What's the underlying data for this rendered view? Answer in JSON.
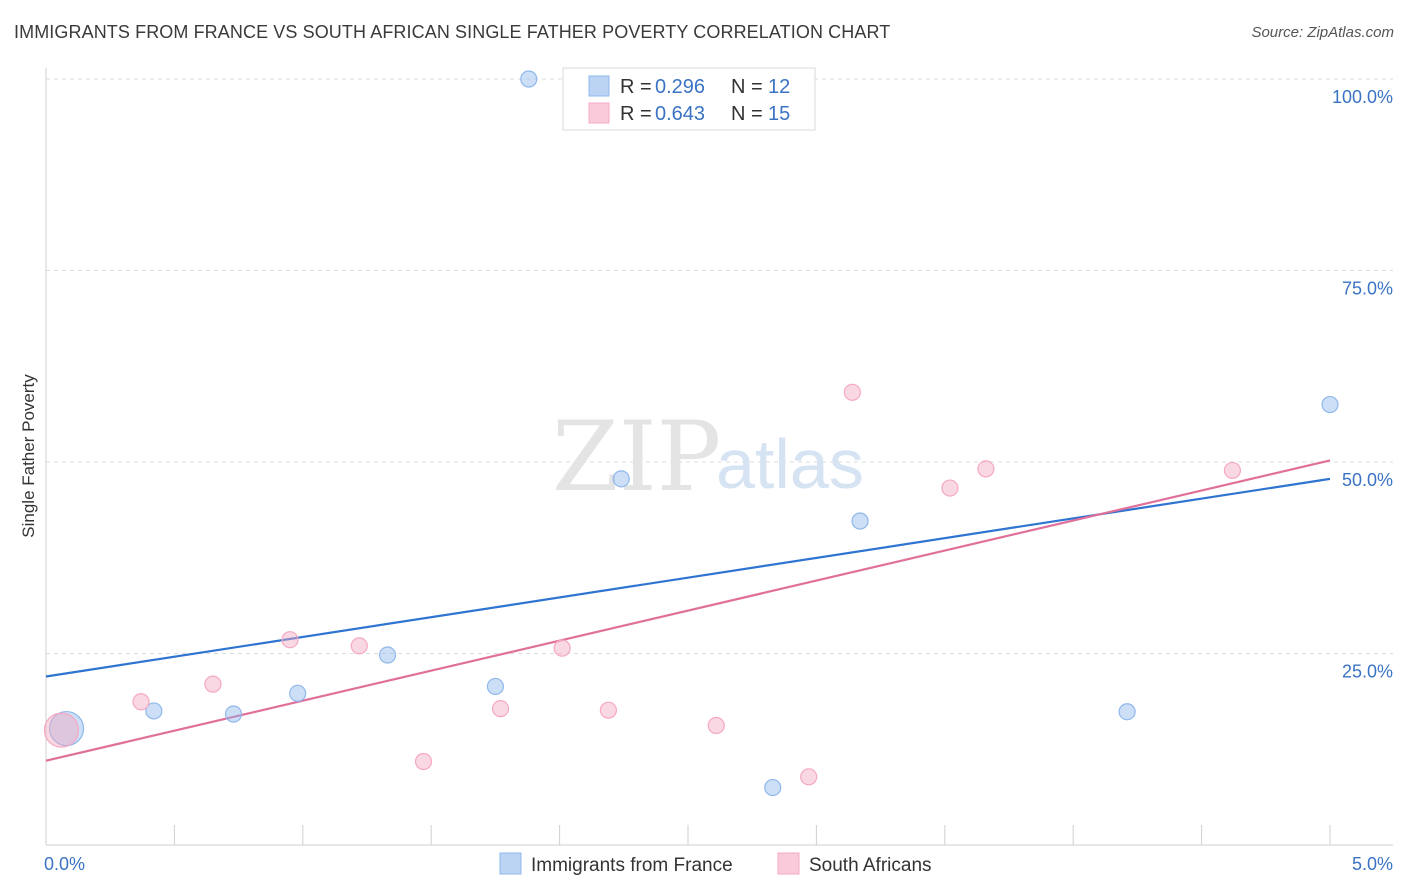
{
  "title": "IMMIGRANTS FROM FRANCE VS SOUTH AFRICAN SINGLE FATHER POVERTY CORRELATION CHART",
  "source": "Source: ZipAtlas.com",
  "watermark": {
    "zip": "ZIP",
    "atlas": "atlas"
  },
  "chart_data": {
    "type": "scatter",
    "ylabel": "Single Father Poverty",
    "xlim": [
      0,
      5
    ],
    "ylim": [
      0,
      100
    ],
    "x_tick_labels": [
      {
        "value": 0,
        "label": "0.0%"
      },
      {
        "value": 5,
        "label": "5.0%"
      }
    ],
    "y_tick_labels": [
      {
        "value": 25,
        "label": "25.0%"
      },
      {
        "value": 50,
        "label": "50.0%"
      },
      {
        "value": 75,
        "label": "75.0%"
      },
      {
        "value": 100,
        "label": "100.0%"
      }
    ],
    "grid": true,
    "legend_top": [
      {
        "r_label": "R = ",
        "r_value": "0.296",
        "n_label": "N = ",
        "n_value": "12",
        "color": "#8fb8ec"
      },
      {
        "r_label": "R = ",
        "r_value": "0.643",
        "n_label": "N = ",
        "n_value": "15",
        "color": "#f5a8c2"
      }
    ],
    "series": [
      {
        "name": "Immigrants from France",
        "color": "#8fb8ec",
        "line_color": "#2e74d0",
        "points": [
          {
            "x": 0.08,
            "y": 15.2,
            "big": true
          },
          {
            "x": 0.42,
            "y": 17.5
          },
          {
            "x": 0.73,
            "y": 17.1
          },
          {
            "x": 0.98,
            "y": 19.8
          },
          {
            "x": 1.33,
            "y": 24.8
          },
          {
            "x": 1.75,
            "y": 20.7
          },
          {
            "x": 1.88,
            "y": 100.0
          },
          {
            "x": 2.24,
            "y": 47.8
          },
          {
            "x": 2.83,
            "y": 7.5
          },
          {
            "x": 3.17,
            "y": 42.3
          },
          {
            "x": 4.21,
            "y": 17.4
          },
          {
            "x": 5.0,
            "y": 57.5
          }
        ],
        "trend": {
          "x0": 0,
          "y0": 22.0,
          "x1": 5.0,
          "y1": 47.8
        }
      },
      {
        "name": "South Africans",
        "color": "#f5a8c2",
        "line_color": "#e0709a",
        "points": [
          {
            "x": 0.06,
            "y": 15.0,
            "big": true
          },
          {
            "x": 0.37,
            "y": 18.7
          },
          {
            "x": 0.65,
            "y": 21.0
          },
          {
            "x": 0.95,
            "y": 26.8
          },
          {
            "x": 1.22,
            "y": 26.0
          },
          {
            "x": 1.47,
            "y": 10.9
          },
          {
            "x": 1.77,
            "y": 17.8
          },
          {
            "x": 2.01,
            "y": 25.7
          },
          {
            "x": 2.19,
            "y": 17.6
          },
          {
            "x": 2.61,
            "y": 15.6
          },
          {
            "x": 2.97,
            "y": 8.9
          },
          {
            "x": 3.14,
            "y": 59.1
          },
          {
            "x": 3.52,
            "y": 46.6
          },
          {
            "x": 3.66,
            "y": 49.1
          },
          {
            "x": 4.62,
            "y": 48.9
          }
        ],
        "trend": {
          "x0": 0,
          "y0": 11.0,
          "x1": 5.0,
          "y1": 50.2
        }
      }
    ]
  }
}
